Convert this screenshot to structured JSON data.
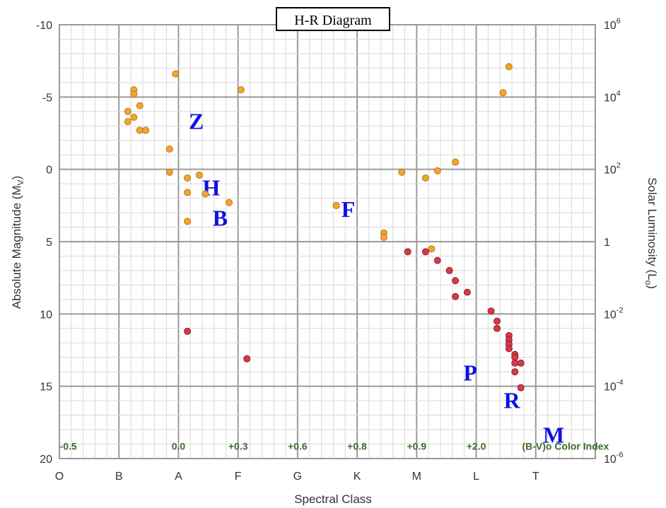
{
  "chart_data": {
    "type": "scatter",
    "title": "H-R Diagram",
    "xlabel": "Spectral Class",
    "ylabel": "Absolute Magnitude (M",
    "ylabel_sub": "V",
    "ylabel_close": ")",
    "y2label": "Solar Luminosity (L",
    "y2label_sub": "o",
    "y2label_close": ")",
    "x_categories": [
      "O",
      "B",
      "A",
      "F",
      "G",
      "K",
      "M",
      "L",
      "T"
    ],
    "xlim": [
      0,
      9
    ],
    "ylim": [
      -10,
      20
    ],
    "y_ticks": [
      "-10",
      "-5",
      "0",
      "5",
      "10",
      "15",
      "20"
    ],
    "y2_ticks": [
      {
        "base": "10",
        "exp": "6",
        "mag": -10
      },
      {
        "base": "10",
        "exp": "4",
        "mag": -5
      },
      {
        "base": "10",
        "exp": "2",
        "mag": 0
      },
      {
        "base": "1",
        "exp": "",
        "mag": 5
      },
      {
        "base": "10",
        "exp": "-2",
        "mag": 10
      },
      {
        "base": "10",
        "exp": "-4",
        "mag": 15
      },
      {
        "base": "10",
        "exp": "-6",
        "mag": 20
      }
    ],
    "color_index_labels": [
      {
        "text": "-0.5",
        "x": 0.15
      },
      {
        "text": "0.0",
        "x": 2.0
      },
      {
        "text": "+0.3",
        "x": 3.0
      },
      {
        "text": "+0.6",
        "x": 4.0
      },
      {
        "text": "+0.8",
        "x": 5.0
      },
      {
        "text": "+0.9",
        "x": 6.0
      },
      {
        "text": "+2.0",
        "x": 7.0
      },
      {
        "text": "(B-V)o Color Index",
        "x": 8.5
      }
    ],
    "regions": [
      {
        "text": "Z",
        "x": 2.3,
        "y": -2.8
      },
      {
        "text": "H",
        "x": 2.55,
        "y": 1.8
      },
      {
        "text": "B",
        "x": 2.7,
        "y": 3.9
      },
      {
        "text": "F",
        "x": 4.85,
        "y": 3.3
      },
      {
        "text": "P",
        "x": 6.9,
        "y": 14.6
      },
      {
        "text": "R",
        "x": 7.6,
        "y": 16.5
      },
      {
        "text": "M",
        "x": 8.3,
        "y": 18.9
      }
    ],
    "grid": true,
    "legend": "none",
    "series": [
      {
        "marker_color": "#f4a52e",
        "edge_color": "#b8731a",
        "points": [
          {
            "x": 1.25,
            "y": -5.5
          },
          {
            "x": 1.25,
            "y": -5.2
          },
          {
            "x": 1.15,
            "y": -4.0
          },
          {
            "x": 1.25,
            "y": -3.6
          },
          {
            "x": 1.15,
            "y": -3.3
          },
          {
            "x": 1.35,
            "y": -4.4
          },
          {
            "x": 1.35,
            "y": -2.7
          },
          {
            "x": 1.45,
            "y": -2.7
          },
          {
            "x": 1.95,
            "y": -6.6
          },
          {
            "x": 3.05,
            "y": -5.5
          },
          {
            "x": 1.85,
            "y": -1.4
          },
          {
            "x": 1.85,
            "y": 0.2
          },
          {
            "x": 2.15,
            "y": 0.6
          },
          {
            "x": 2.35,
            "y": 0.4
          },
          {
            "x": 2.15,
            "y": 1.6
          },
          {
            "x": 2.45,
            "y": 1.7
          },
          {
            "x": 2.85,
            "y": 2.3
          },
          {
            "x": 2.15,
            "y": 3.6
          },
          {
            "x": 4.65,
            "y": 2.5
          },
          {
            "x": 5.45,
            "y": 4.4
          },
          {
            "x": 5.45,
            "y": 4.7
          },
          {
            "x": 5.75,
            "y": 0.2
          },
          {
            "x": 6.15,
            "y": 0.6
          },
          {
            "x": 6.35,
            "y": 0.1
          },
          {
            "x": 6.65,
            "y": -0.5
          },
          {
            "x": 6.25,
            "y": 5.5
          },
          {
            "x": 7.45,
            "y": -5.3
          },
          {
            "x": 7.55,
            "y": -7.1
          }
        ]
      },
      {
        "marker_color": "#d8394a",
        "edge_color": "#8a1f2a",
        "points": [
          {
            "x": 2.15,
            "y": 11.2
          },
          {
            "x": 3.15,
            "y": 13.1
          },
          {
            "x": 5.85,
            "y": 5.7
          },
          {
            "x": 6.15,
            "y": 5.7
          },
          {
            "x": 6.35,
            "y": 6.3
          },
          {
            "x": 6.55,
            "y": 7.0
          },
          {
            "x": 6.65,
            "y": 7.7
          },
          {
            "x": 6.85,
            "y": 8.5
          },
          {
            "x": 6.65,
            "y": 8.8
          },
          {
            "x": 7.25,
            "y": 9.8
          },
          {
            "x": 7.35,
            "y": 10.5
          },
          {
            "x": 7.35,
            "y": 11.0
          },
          {
            "x": 7.55,
            "y": 11.5
          },
          {
            "x": 7.55,
            "y": 11.8
          },
          {
            "x": 7.55,
            "y": 12.1
          },
          {
            "x": 7.55,
            "y": 12.4
          },
          {
            "x": 7.65,
            "y": 12.8
          },
          {
            "x": 7.65,
            "y": 13.0
          },
          {
            "x": 7.65,
            "y": 13.4
          },
          {
            "x": 7.75,
            "y": 13.4
          },
          {
            "x": 7.65,
            "y": 14.0
          },
          {
            "x": 7.75,
            "y": 15.1
          }
        ]
      }
    ]
  }
}
